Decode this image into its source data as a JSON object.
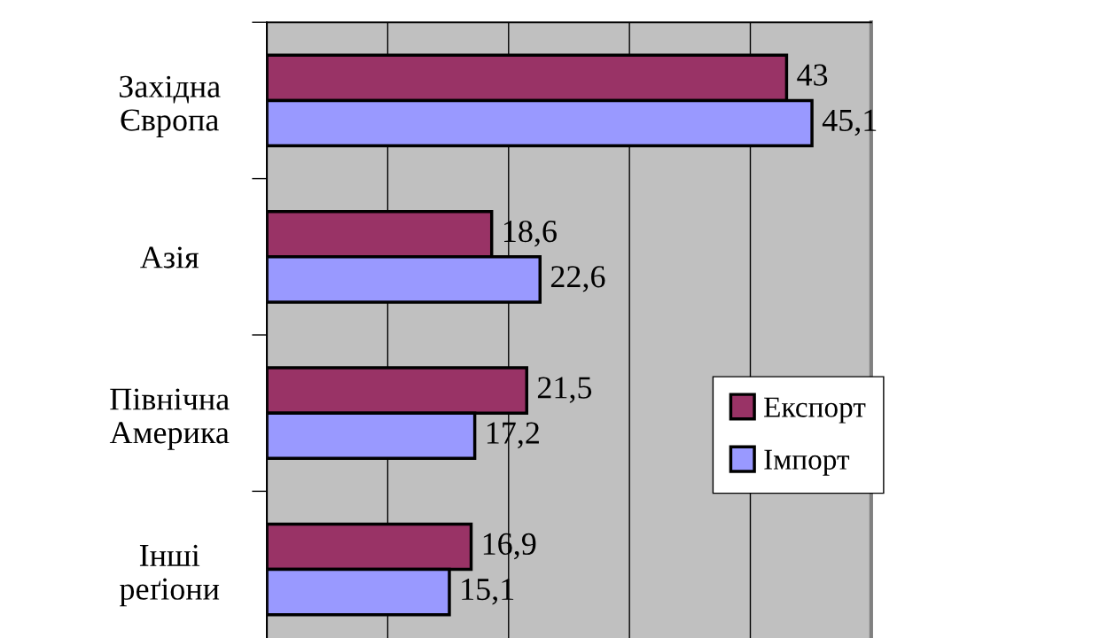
{
  "chart_data": {
    "type": "bar",
    "orientation": "horizontal",
    "categories": [
      "Західна\nЄвропа",
      "Азія",
      "Північна\nАмерика",
      "Інші\nреґіони"
    ],
    "series": [
      {
        "name": "Експорт",
        "color": "#993366",
        "values": [
          43,
          18.6,
          21.5,
          16.9
        ],
        "value_labels": [
          "43",
          "18,6",
          "21,5",
          "16,9"
        ]
      },
      {
        "name": "Імпорт",
        "color": "#9999ff",
        "values": [
          45.1,
          22.6,
          17.2,
          15.1
        ],
        "value_labels": [
          "45,1",
          "22,6",
          "17,2",
          "15,1"
        ]
      }
    ],
    "xlim": [
      0,
      50
    ],
    "xticks": [
      {
        "value": 10,
        "label": null
      },
      {
        "value": 20,
        "label": null
      },
      {
        "value": 30,
        "label": null
      },
      {
        "value": 40,
        "label": null
      }
    ],
    "tick_labels": "y",
    "grid": "x",
    "legend": "right"
  }
}
